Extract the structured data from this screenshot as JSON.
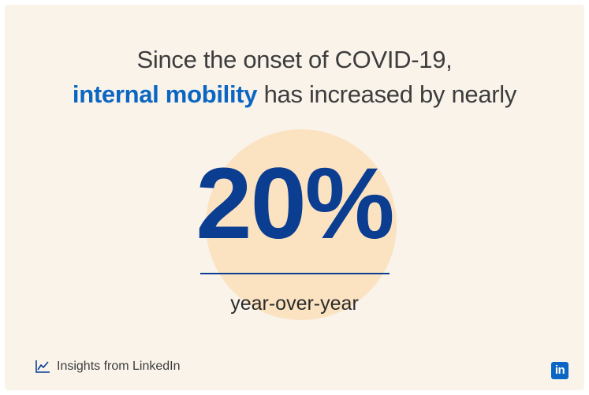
{
  "headline": {
    "line1": "Since the onset of COVID-19,",
    "highlight": "internal mobility",
    "line2_rest": " has increased by nearly"
  },
  "stat": {
    "value": "20%",
    "caption": "year-over-year"
  },
  "footer": {
    "label": "Insights from LinkedIn",
    "icon": "chart-line-icon"
  },
  "logo": {
    "text": "in",
    "brand_color": "#0a66c2"
  },
  "colors": {
    "background": "#f9f3ea",
    "circle": "#fbe3c2",
    "number": "#0b3d91",
    "highlight": "#0a66c2"
  }
}
